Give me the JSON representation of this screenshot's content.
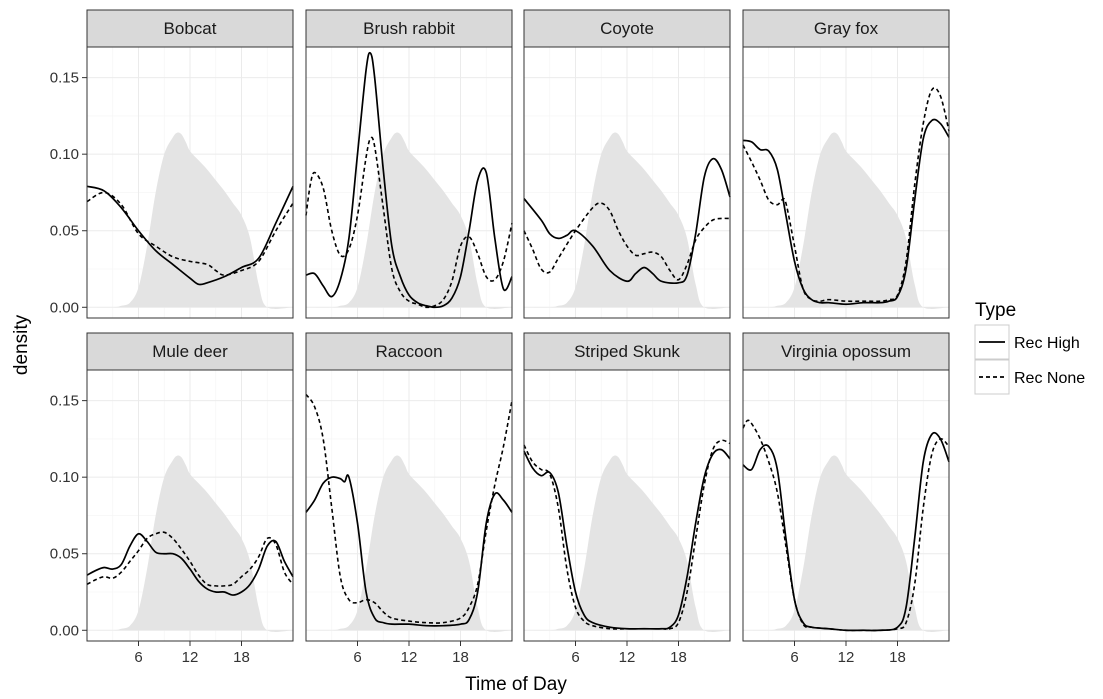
{
  "chart_data": {
    "type": "line",
    "facet_layout": "4 columns x 2 rows",
    "xlabel": "Time of Day",
    "ylabel": "density",
    "xlim": [
      0,
      24
    ],
    "ylim": [
      -0.007,
      0.17
    ],
    "x_ticks": [
      6,
      12,
      18
    ],
    "y_ticks": [
      0.0,
      0.05,
      0.1,
      0.15
    ],
    "y_tick_labels": [
      "0.00",
      "0.05",
      "0.10",
      "0.15"
    ],
    "grid": true,
    "legend": {
      "title": "Type",
      "placement": "right",
      "entries": [
        {
          "label": "Rec High",
          "line_style": "solid"
        },
        {
          "label": "Rec None",
          "line_style": "dashed"
        }
      ]
    },
    "colors": {
      "line": "#000000",
      "reference_area": "#e4e4e4",
      "strip": "#d9d9d9"
    },
    "reference_area": {
      "x": [
        0,
        3,
        4,
        5,
        6,
        7,
        8,
        9,
        10,
        10.5,
        11,
        11.5,
        12,
        13,
        14,
        15,
        16,
        17,
        18,
        19,
        20,
        21,
        24
      ],
      "y": [
        0,
        0,
        0.001,
        0.003,
        0.013,
        0.04,
        0.075,
        0.1,
        0.111,
        0.114,
        0.113,
        0.108,
        0.102,
        0.096,
        0.09,
        0.083,
        0.076,
        0.068,
        0.06,
        0.045,
        0.015,
        0,
        0
      ]
    },
    "facets": [
      {
        "name": "Bobcat",
        "series": [
          {
            "name": "Rec High",
            "x": [
              0,
              2,
              4,
              6,
              8,
              10,
              12,
              13,
              14,
              16,
              18,
              20,
              22,
              24
            ],
            "y": [
              0.079,
              0.076,
              0.065,
              0.05,
              0.037,
              0.028,
              0.019,
              0.015,
              0.016,
              0.02,
              0.026,
              0.032,
              0.055,
              0.079
            ]
          },
          {
            "name": "Rec None",
            "x": [
              0,
              2,
              4,
              6,
              8,
              10,
              12,
              14,
              15,
              16,
              18,
              20,
              22,
              24
            ],
            "y": [
              0.069,
              0.075,
              0.067,
              0.048,
              0.04,
              0.033,
              0.03,
              0.028,
              0.024,
              0.021,
              0.024,
              0.03,
              0.05,
              0.068
            ]
          }
        ]
      },
      {
        "name": "Brush rabbit",
        "series": [
          {
            "name": "Rec High",
            "x": [
              0,
              1,
              2,
              3,
              4,
              5,
              6,
              7,
              7.5,
              8,
              9,
              10,
              11,
              12,
              13,
              14,
              15,
              16,
              17,
              18,
              19,
              20,
              21,
              22,
              23,
              24
            ],
            "y": [
              0.021,
              0.022,
              0.014,
              0.007,
              0.018,
              0.045,
              0.1,
              0.155,
              0.166,
              0.15,
              0.09,
              0.04,
              0.02,
              0.008,
              0.003,
              0.001,
              0.0,
              0.001,
              0.006,
              0.02,
              0.05,
              0.083,
              0.088,
              0.045,
              0.012,
              0.02
            ]
          },
          {
            "name": "Rec None",
            "x": [
              0,
              0.5,
              1,
              2,
              3,
              4,
              5,
              6,
              7,
              7.5,
              8,
              9,
              10,
              11,
              12,
              13,
              14,
              15,
              16,
              17,
              18,
              19,
              20,
              21,
              22,
              23,
              24
            ],
            "y": [
              0.06,
              0.08,
              0.088,
              0.078,
              0.05,
              0.034,
              0.038,
              0.06,
              0.098,
              0.11,
              0.105,
              0.065,
              0.025,
              0.01,
              0.004,
              0.002,
              0.0,
              0.001,
              0.005,
              0.017,
              0.04,
              0.046,
              0.035,
              0.02,
              0.018,
              0.03,
              0.055
            ]
          }
        ]
      },
      {
        "name": "Coyote",
        "series": [
          {
            "name": "Rec High",
            "x": [
              0,
              2,
              3,
              4,
              5,
              6,
              8,
              10,
              12,
              13,
              14,
              15,
              16,
              18,
              19,
              20,
              21,
              22,
              23,
              24
            ],
            "y": [
              0.071,
              0.057,
              0.048,
              0.045,
              0.047,
              0.05,
              0.04,
              0.024,
              0.017,
              0.022,
              0.026,
              0.022,
              0.017,
              0.016,
              0.021,
              0.048,
              0.085,
              0.097,
              0.09,
              0.072
            ]
          },
          {
            "name": "Rec None",
            "x": [
              0,
              1,
              2,
              3,
              4,
              6,
              8,
              9,
              10,
              11,
              12,
              13,
              14,
              15,
              16,
              17,
              18,
              19,
              20,
              21,
              22,
              23,
              24
            ],
            "y": [
              0.05,
              0.038,
              0.025,
              0.023,
              0.032,
              0.05,
              0.065,
              0.068,
              0.063,
              0.05,
              0.04,
              0.034,
              0.035,
              0.036,
              0.033,
              0.024,
              0.018,
              0.028,
              0.044,
              0.052,
              0.057,
              0.058,
              0.058
            ]
          }
        ]
      },
      {
        "name": "Gray fox",
        "series": [
          {
            "name": "Rec High",
            "x": [
              0,
              1,
              2,
              3,
              4,
              5,
              6,
              7,
              8,
              9,
              10,
              12,
              14,
              16,
              17,
              18,
              19,
              20,
              21,
              22,
              23,
              24
            ],
            "y": [
              0.109,
              0.108,
              0.103,
              0.102,
              0.09,
              0.06,
              0.03,
              0.012,
              0.005,
              0.003,
              0.003,
              0.002,
              0.003,
              0.003,
              0.004,
              0.007,
              0.025,
              0.07,
              0.11,
              0.122,
              0.12,
              0.111
            ]
          },
          {
            "name": "Rec None",
            "x": [
              0,
              1,
              2,
              3,
              4,
              4.5,
              5,
              6,
              7,
              8,
              9,
              10,
              12,
              14,
              16,
              17,
              18,
              19,
              20,
              21,
              22,
              23,
              24
            ],
            "y": [
              0.106,
              0.095,
              0.083,
              0.07,
              0.067,
              0.07,
              0.068,
              0.04,
              0.012,
              0.005,
              0.004,
              0.005,
              0.004,
              0.004,
              0.004,
              0.005,
              0.008,
              0.03,
              0.08,
              0.12,
              0.142,
              0.138,
              0.115
            ]
          }
        ]
      },
      {
        "name": "Mule deer",
        "series": [
          {
            "name": "Rec High",
            "x": [
              0,
              1,
              2,
              3,
              4,
              5,
              6,
              7,
              8,
              9,
              10,
              11,
              12,
              13,
              14,
              15,
              16,
              17,
              18,
              19,
              20,
              21,
              22,
              23,
              24
            ],
            "y": [
              0.036,
              0.039,
              0.041,
              0.04,
              0.043,
              0.055,
              0.063,
              0.058,
              0.051,
              0.05,
              0.05,
              0.047,
              0.04,
              0.032,
              0.027,
              0.025,
              0.025,
              0.023,
              0.025,
              0.03,
              0.04,
              0.055,
              0.058,
              0.045,
              0.035
            ]
          },
          {
            "name": "Rec None",
            "x": [
              0,
              1,
              2,
              3,
              4,
              5,
              6,
              7,
              8,
              9,
              10,
              11,
              12,
              13,
              14,
              15,
              16,
              17,
              18,
              19,
              20,
              21,
              22,
              23,
              24
            ],
            "y": [
              0.03,
              0.033,
              0.035,
              0.034,
              0.038,
              0.045,
              0.052,
              0.06,
              0.063,
              0.064,
              0.06,
              0.053,
              0.045,
              0.036,
              0.03,
              0.029,
              0.029,
              0.03,
              0.035,
              0.04,
              0.048,
              0.06,
              0.056,
              0.038,
              0.03
            ]
          }
        ]
      },
      {
        "name": "Raccoon",
        "series": [
          {
            "name": "Rec High",
            "x": [
              0,
              1,
              2,
              3,
              4,
              4.5,
              5,
              6,
              7,
              8,
              9,
              10,
              12,
              14,
              16,
              18,
              19,
              20,
              21,
              22,
              23,
              24
            ],
            "y": [
              0.077,
              0.085,
              0.096,
              0.1,
              0.099,
              0.097,
              0.1,
              0.07,
              0.025,
              0.008,
              0.005,
              0.004,
              0.004,
              0.003,
              0.003,
              0.004,
              0.007,
              0.025,
              0.07,
              0.089,
              0.085,
              0.077
            ]
          },
          {
            "name": "Rec None",
            "x": [
              0,
              1,
              2,
              3,
              4,
              5,
              6,
              7,
              8,
              9,
              10,
              12,
              14,
              16,
              18,
              19,
              20,
              21,
              22,
              23,
              24
            ],
            "y": [
              0.154,
              0.146,
              0.125,
              0.08,
              0.035,
              0.02,
              0.018,
              0.02,
              0.018,
              0.012,
              0.008,
              0.006,
              0.005,
              0.005,
              0.008,
              0.015,
              0.03,
              0.065,
              0.095,
              0.12,
              0.15
            ]
          }
        ]
      },
      {
        "name": "Striped Skunk",
        "series": [
          {
            "name": "Rec High",
            "x": [
              0,
              1,
              2,
              3,
              4,
              5,
              6,
              7,
              8,
              10,
              12,
              14,
              16,
              17,
              18,
              19,
              20,
              21,
              22,
              23,
              24
            ],
            "y": [
              0.117,
              0.106,
              0.101,
              0.103,
              0.09,
              0.055,
              0.025,
              0.01,
              0.005,
              0.002,
              0.001,
              0.001,
              0.001,
              0.002,
              0.01,
              0.035,
              0.07,
              0.1,
              0.115,
              0.118,
              0.112
            ]
          },
          {
            "name": "Rec None",
            "x": [
              0,
              1,
              2,
              3,
              4,
              5,
              6,
              7,
              8,
              10,
              12,
              14,
              16,
              17,
              18,
              19,
              20,
              21,
              22,
              23,
              24
            ],
            "y": [
              0.121,
              0.11,
              0.105,
              0.102,
              0.08,
              0.04,
              0.015,
              0.006,
              0.003,
              0.001,
              0.001,
              0.001,
              0.001,
              0.001,
              0.005,
              0.025,
              0.06,
              0.095,
              0.118,
              0.124,
              0.122
            ]
          }
        ]
      },
      {
        "name": "Virginia opossum",
        "series": [
          {
            "name": "Rec High",
            "x": [
              0,
              1,
              2,
              3,
              4,
              5,
              6,
              7,
              8,
              10,
              12,
              14,
              16,
              18,
              19,
              20,
              21,
              22,
              23,
              24
            ],
            "y": [
              0.108,
              0.105,
              0.118,
              0.12,
              0.105,
              0.06,
              0.02,
              0.005,
              0.002,
              0.001,
              0.0,
              0.0,
              0.0,
              0.002,
              0.015,
              0.06,
              0.11,
              0.128,
              0.125,
              0.11
            ]
          },
          {
            "name": "Rec None",
            "x": [
              0,
              0.5,
              1,
              2,
              3,
              4,
              5,
              6,
              7,
              8,
              10,
              12,
              14,
              16,
              18,
              19,
              20,
              21,
              22,
              23,
              24
            ],
            "y": [
              0.132,
              0.137,
              0.135,
              0.125,
              0.11,
              0.09,
              0.055,
              0.02,
              0.004,
              0.002,
              0.001,
              0.0,
              0.0,
              0.0,
              0.001,
              0.005,
              0.03,
              0.08,
              0.115,
              0.125,
              0.12
            ]
          }
        ]
      }
    ]
  }
}
